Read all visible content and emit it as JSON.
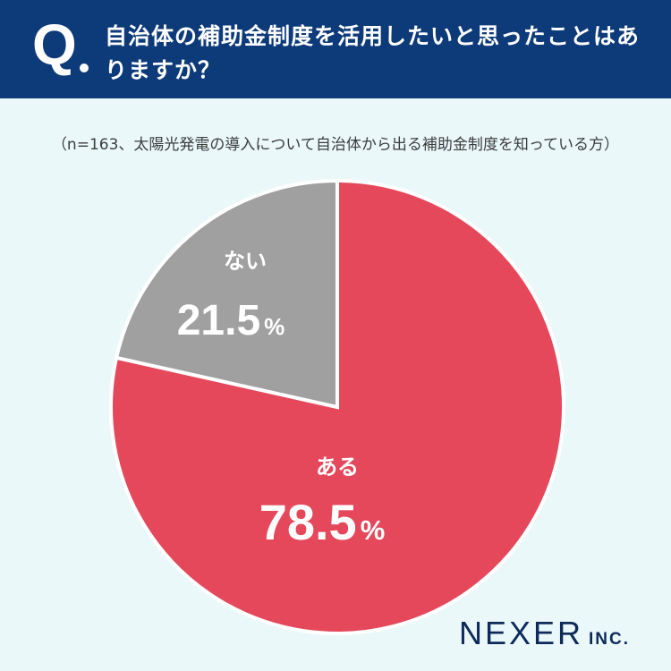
{
  "header": {
    "q_label": "Q",
    "question": "自治体の補助金制度を活用したいと思ったことはありますか？"
  },
  "sample_note": "（n=163、太陽光発電の導入について自治体から出る補助金制度を知っている方）",
  "colors": {
    "header_bg": "#0d3b7a",
    "background": "#eaf8fa",
    "yes": "#e5485b",
    "no": "#a0a0a0"
  },
  "chart_data": {
    "type": "pie",
    "slices": [
      {
        "label": "ある",
        "value": 78.5,
        "display": "78.5",
        "color": "#e5485b"
      },
      {
        "label": "ない",
        "value": 21.5,
        "display": "21.5",
        "color": "#a0a0a0"
      }
    ],
    "unit": "%",
    "start": "12 o'clock",
    "direction": "clockwise"
  },
  "logo": {
    "name": "NEXER",
    "suffix": "INC."
  }
}
